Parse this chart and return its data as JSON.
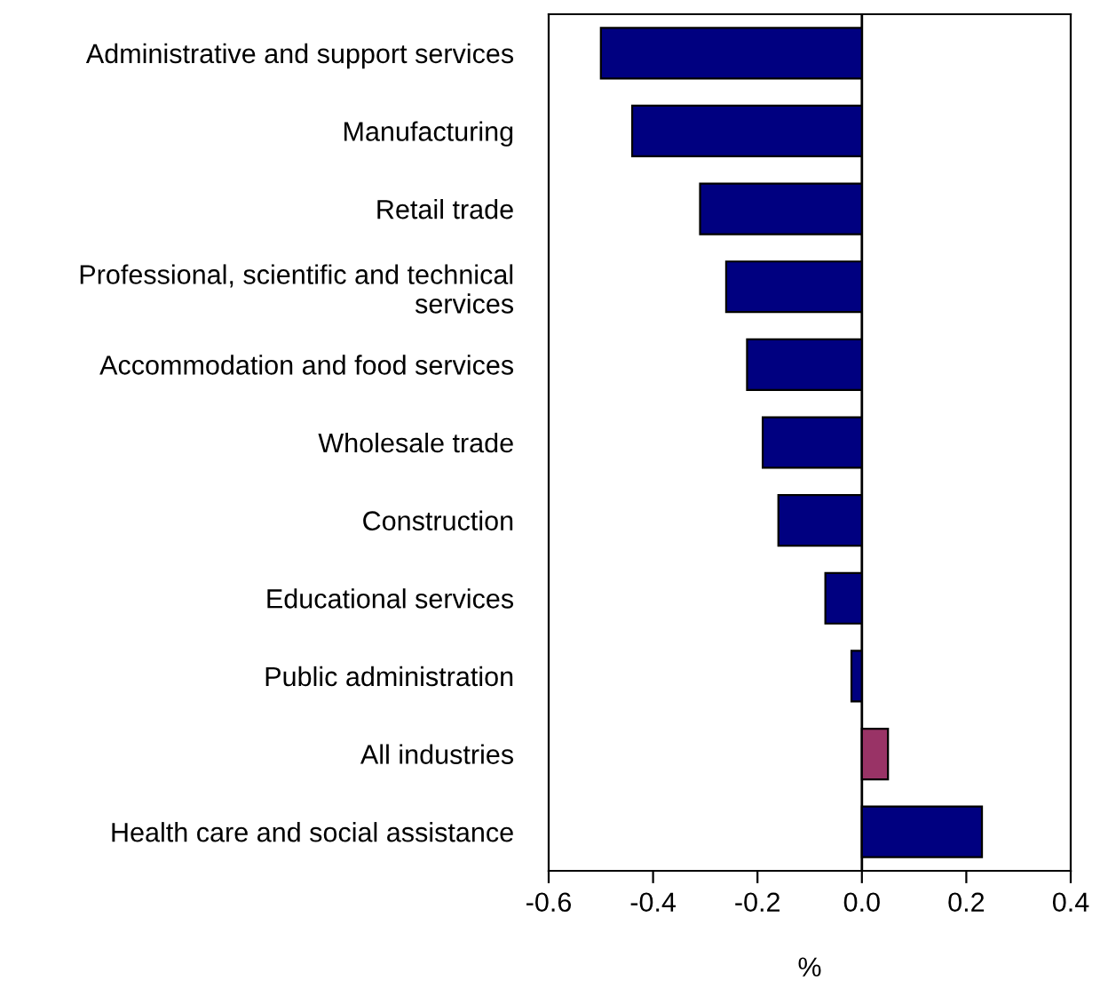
{
  "chart_data": {
    "type": "bar",
    "orientation": "horizontal",
    "xlabel": "%",
    "categories": [
      "Administrative and support services",
      "Manufacturing",
      "Retail trade",
      "Professional, scientific and technical\nservices",
      "Accommodation and food services",
      "Wholesale trade",
      "Construction",
      "Educational services",
      "Public administration",
      "All industries",
      "Health care and social assistance"
    ],
    "values": [
      -0.5,
      -0.44,
      -0.31,
      -0.26,
      -0.22,
      -0.19,
      -0.16,
      -0.07,
      -0.02,
      0.05,
      0.23
    ],
    "colors": [
      "#000080",
      "#000080",
      "#000080",
      "#000080",
      "#000080",
      "#000080",
      "#000080",
      "#000080",
      "#000080",
      "#993366",
      "#000080"
    ],
    "xlim": [
      -0.6,
      0.4
    ],
    "xticks": [
      {
        "value": -0.6,
        "label": "-0.6"
      },
      {
        "value": -0.4,
        "label": "-0.4"
      },
      {
        "value": -0.2,
        "label": "-0.2"
      },
      {
        "value": 0.0,
        "label": "0.0"
      },
      {
        "value": 0.2,
        "label": "0.2"
      },
      {
        "value": 0.4,
        "label": "0.4"
      }
    ],
    "ref_lines": [
      {
        "axis": "x",
        "value": 0.0,
        "color": "#000000"
      }
    ],
    "grid": false,
    "legend": false
  }
}
